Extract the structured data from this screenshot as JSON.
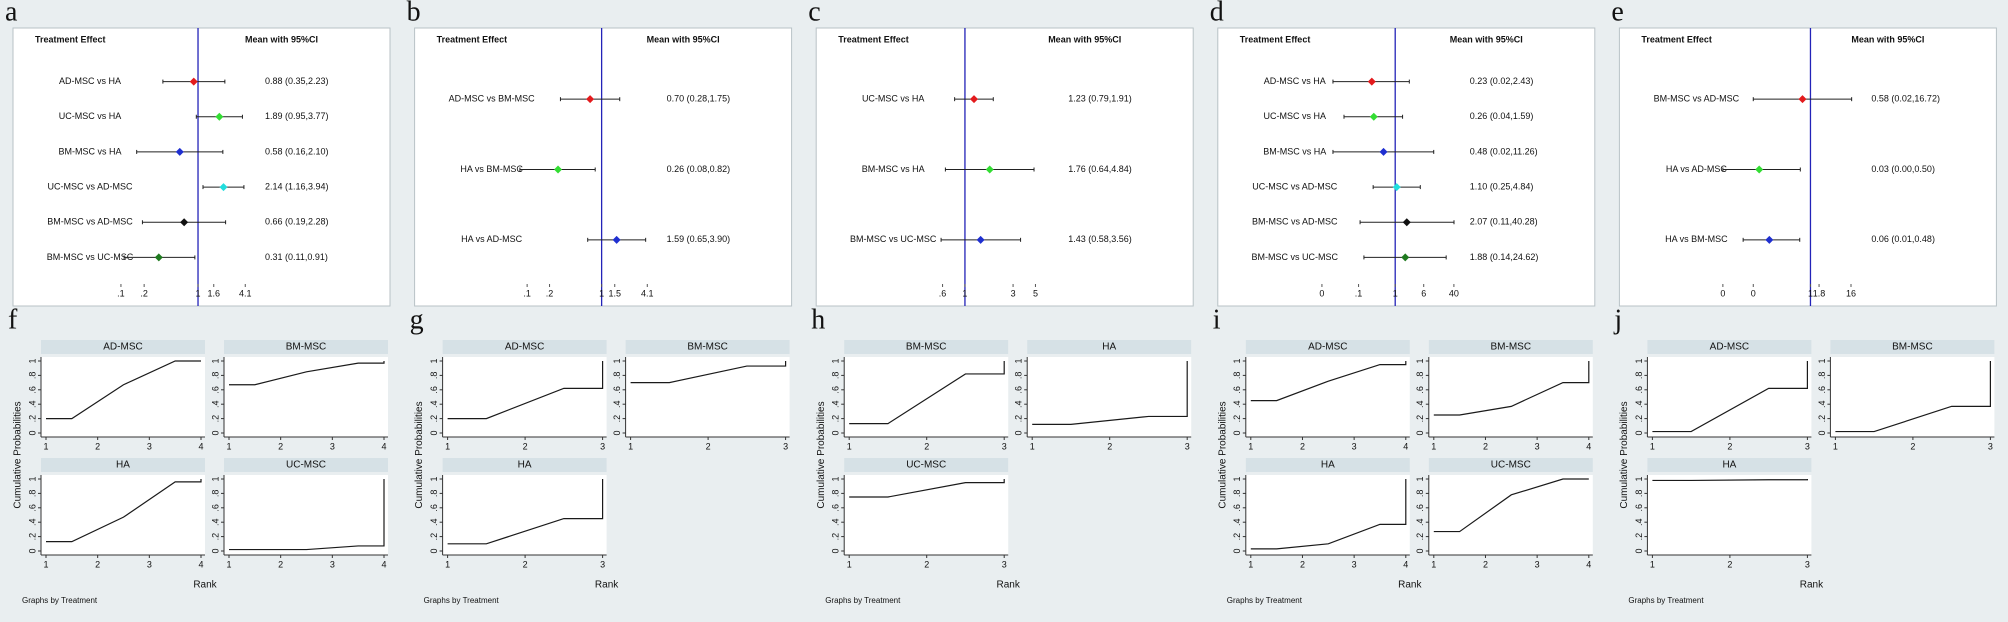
{
  "chart_data": [
    {
      "type": "forest",
      "panel_label": "a",
      "label_header": "Treatment Effect",
      "value_header": "Mean with 95%CI",
      "categories": [
        "AD-MSC vs HA",
        "UC-MSC vs HA",
        "BM-MSC vs HA",
        "UC-MSC vs AD-MSC",
        "BM-MSC vs AD-MSC",
        "BM-MSC vs UC-MSC"
      ],
      "values": [
        0.88,
        1.89,
        0.58,
        2.14,
        0.66,
        0.31
      ],
      "lower": [
        0.35,
        0.95,
        0.16,
        1.16,
        0.19,
        0.11
      ],
      "upper": [
        2.23,
        3.77,
        2.1,
        3.94,
        2.28,
        0.91
      ],
      "value_labels": [
        "0.88 (0.35,2.23)",
        "1.89 (0.95,3.77)",
        "0.58 (0.16,2.10)",
        "2.14 (1.16,3.94)",
        "0.66 (0.19,2.28)",
        "0.31 (0.11,0.91)"
      ],
      "colors": [
        "#e31a1c",
        "#33dd33",
        "#1f2fd0",
        "#22dddd",
        "#111111",
        "#1f7a1f"
      ],
      "ref_line": 1,
      "ref_color": "#2323b8",
      "log_x": true,
      "xlim": [
        0.07,
        6
      ],
      "xticks": [
        {
          "value": 0.1,
          "label": ".1"
        },
        {
          "value": 0.2,
          "label": ".2"
        },
        1,
        1.6,
        4.1
      ]
    },
    {
      "type": "forest",
      "panel_label": "b",
      "label_header": "Treatment Effect",
      "value_header": "Mean with 95%CI",
      "categories": [
        "AD-MSC vs BM-MSC",
        "HA vs BM-MSC",
        "HA vs AD-MSC"
      ],
      "values": [
        0.7,
        0.26,
        1.59
      ],
      "lower": [
        0.28,
        0.08,
        0.65
      ],
      "upper": [
        1.75,
        0.82,
        3.9
      ],
      "value_labels": [
        "0.70 (0.28,1.75)",
        "0.26 (0.08,0.82)",
        "1.59 (0.65,3.90)"
      ],
      "colors": [
        "#e31a1c",
        "#33dd33",
        "#1f2fd0"
      ],
      "ref_line": 1,
      "ref_color": "#2323b8",
      "log_x": true,
      "xlim": [
        0.06,
        6
      ],
      "xticks": [
        {
          "value": 0.1,
          "label": ".1"
        },
        {
          "value": 0.2,
          "label": ".2"
        },
        1,
        1.5,
        4.1
      ]
    },
    {
      "type": "forest",
      "panel_label": "c",
      "label_header": "Treatment Effect",
      "value_header": "Mean with 95%CI",
      "categories": [
        "UC-MSC vs HA",
        "BM-MSC vs HA",
        "BM-MSC vs UC-MSC"
      ],
      "values": [
        1.23,
        1.76,
        1.43
      ],
      "lower": [
        0.79,
        0.64,
        0.58
      ],
      "upper": [
        1.91,
        4.84,
        3.56
      ],
      "value_labels": [
        "1.23 (0.79,1.91)",
        "1.76 (0.64,4.84)",
        "1.43 (0.58,3.56)"
      ],
      "colors": [
        "#e31a1c",
        "#33dd33",
        "#1f2fd0"
      ],
      "ref_line": 1,
      "ref_color": "#2323b8",
      "log_x": true,
      "xlim": [
        0.3,
        9
      ],
      "xticks": [
        {
          "value": 0.6,
          "label": ".6"
        },
        1,
        3,
        5
      ]
    },
    {
      "type": "forest",
      "panel_label": "d",
      "label_header": "Treatment Effect",
      "value_header": "Mean with 95%CI",
      "categories": [
        "AD-MSC vs HA",
        "UC-MSC vs HA",
        "BM-MSC vs HA",
        "UC-MSC vs AD-MSC",
        "BM-MSC vs AD-MSC",
        "BM-MSC vs UC-MSC"
      ],
      "values": [
        0.23,
        0.26,
        0.48,
        1.1,
        2.07,
        1.88
      ],
      "lower": [
        0.02,
        0.04,
        0.02,
        0.25,
        0.11,
        0.14
      ],
      "upper": [
        2.43,
        1.59,
        11.26,
        4.84,
        40.28,
        24.62
      ],
      "value_labels": [
        "0.23 (0.02,2.43)",
        "0.26 (0.04,1.59)",
        "0.48 (0.02,11.26)",
        "1.10 (0.25,4.84)",
        "2.07 (0.11,40.28)",
        "1.88 (0.14,24.62)"
      ],
      "colors": [
        "#e31a1c",
        "#33dd33",
        "#1f2fd0",
        "#22dddd",
        "#111111",
        "#1f7a1f"
      ],
      "ref_line": 1,
      "ref_color": "#2323b8",
      "log_x": true,
      "xlim": [
        0.006,
        70
      ],
      "xticks": [
        {
          "value": 0.01,
          "label": "0"
        },
        {
          "value": 0.1,
          "label": ".1"
        },
        1,
        6,
        40
      ]
    },
    {
      "type": "forest",
      "panel_label": "e",
      "label_header": "Treatment Effect",
      "value_header": "Mean with 95%CI",
      "categories": [
        "BM-MSC vs AD-MSC",
        "HA vs AD-MSC",
        "HA vs BM-MSC"
      ],
      "values": [
        0.58,
        0.03,
        0.06
      ],
      "lower": [
        0.02,
        0.0025,
        0.01
      ],
      "upper": [
        16.72,
        0.5,
        0.48
      ],
      "value_labels": [
        "0.58 (0.02,16.72)",
        "0.03 (0.00,0.50)",
        "0.06 (0.01,0.48)"
      ],
      "colors": [
        "#e31a1c",
        "#33dd33",
        "#1f2fd0"
      ],
      "ref_line": 1,
      "ref_color": "#2323b8",
      "log_x": true,
      "xlim": [
        0.0015,
        40
      ],
      "xticks": [
        {
          "value": 0.0025,
          "label": "0"
        },
        {
          "value": 0.02,
          "label": "0"
        },
        1,
        1.8,
        16
      ]
    },
    {
      "type": "line",
      "panel_label": "f",
      "ylabel": "Cumulative Probabilities",
      "xlabel": "Rank",
      "note": "Graphs by Treatment",
      "color": "#1a1a1a",
      "xlim": [
        1,
        4
      ],
      "xticks": [
        1,
        2,
        3,
        4
      ],
      "ylim": [
        0,
        1
      ],
      "yticks": [
        0,
        {
          "value": 0.2,
          "label": ".2"
        },
        {
          "value": 0.4,
          "label": ".4"
        },
        {
          "value": 0.6,
          "label": ".6"
        },
        {
          "value": 0.8,
          "label": ".8"
        },
        1
      ],
      "series": [
        {
          "name": "AD-MSC",
          "x": [
            1,
            1.5,
            2.5,
            3.5,
            4,
            4
          ],
          "values": [
            0.2,
            0.2,
            0.67,
            1,
            1,
            1
          ]
        },
        {
          "name": "BM-MSC",
          "x": [
            1,
            1.5,
            2.5,
            3.5,
            4,
            4
          ],
          "values": [
            0.67,
            0.67,
            0.85,
            0.97,
            0.97,
            1
          ]
        },
        {
          "name": "HA",
          "x": [
            1,
            1.5,
            2.5,
            3.5,
            4,
            4
          ],
          "values": [
            0.13,
            0.13,
            0.47,
            0.96,
            0.96,
            1
          ]
        },
        {
          "name": "UC-MSC",
          "x": [
            1,
            1.5,
            2.5,
            3.5,
            4,
            4
          ],
          "values": [
            0.02,
            0.02,
            0.02,
            0.07,
            0.07,
            1
          ]
        }
      ]
    },
    {
      "type": "line",
      "panel_label": "g",
      "ylabel": "Cumulative Probabilities",
      "xlabel": "Rank",
      "note": "Graphs by Treatment",
      "color": "#1a1a1a",
      "xlim": [
        1,
        3
      ],
      "xticks": [
        1,
        2,
        3
      ],
      "ylim": [
        0,
        1
      ],
      "yticks": [
        0,
        {
          "value": 0.2,
          "label": ".2"
        },
        {
          "value": 0.4,
          "label": ".4"
        },
        {
          "value": 0.6,
          "label": ".6"
        },
        {
          "value": 0.8,
          "label": ".8"
        },
        1
      ],
      "series": [
        {
          "name": "AD-MSC",
          "x": [
            1,
            1.5,
            2.5,
            3,
            3
          ],
          "values": [
            0.2,
            0.2,
            0.62,
            0.62,
            1
          ]
        },
        {
          "name": "BM-MSC",
          "x": [
            1,
            1.5,
            2.5,
            3,
            3
          ],
          "values": [
            0.7,
            0.7,
            0.93,
            0.93,
            1
          ]
        },
        {
          "name": "HA",
          "x": [
            1,
            1.5,
            2.5,
            3,
            3
          ],
          "values": [
            0.1,
            0.1,
            0.45,
            0.45,
            1
          ]
        }
      ]
    },
    {
      "type": "line",
      "panel_label": "h",
      "ylabel": "Cumulative Probabilities",
      "xlabel": "Rank",
      "note": "Graphs by Treatment",
      "color": "#1a1a1a",
      "xlim": [
        1,
        3
      ],
      "xticks": [
        1,
        2,
        3
      ],
      "ylim": [
        0,
        1
      ],
      "yticks": [
        0,
        {
          "value": 0.2,
          "label": ".2"
        },
        {
          "value": 0.4,
          "label": ".4"
        },
        {
          "value": 0.6,
          "label": ".6"
        },
        {
          "value": 0.8,
          "label": ".8"
        },
        1
      ],
      "series": [
        {
          "name": "BM-MSC",
          "x": [
            1,
            1.5,
            2.5,
            3,
            3
          ],
          "values": [
            0.13,
            0.13,
            0.82,
            0.82,
            1
          ]
        },
        {
          "name": "HA",
          "x": [
            1,
            1.5,
            2.5,
            3,
            3
          ],
          "values": [
            0.12,
            0.12,
            0.23,
            0.23,
            1
          ]
        },
        {
          "name": "UC-MSC",
          "x": [
            1,
            1.5,
            2.5,
            3,
            3
          ],
          "values": [
            0.75,
            0.75,
            0.95,
            0.95,
            1
          ]
        }
      ]
    },
    {
      "type": "line",
      "panel_label": "i",
      "ylabel": "Cumulative Probabilities",
      "xlabel": "Rank",
      "note": "Graphs by Treatment",
      "color": "#1a1a1a",
      "xlim": [
        1,
        4
      ],
      "xticks": [
        1,
        2,
        3,
        4
      ],
      "ylim": [
        0,
        1
      ],
      "yticks": [
        0,
        {
          "value": 0.2,
          "label": ".2"
        },
        {
          "value": 0.4,
          "label": ".4"
        },
        {
          "value": 0.6,
          "label": ".6"
        },
        {
          "value": 0.8,
          "label": ".8"
        },
        1
      ],
      "series": [
        {
          "name": "AD-MSC",
          "x": [
            1,
            1.5,
            2.5,
            3.5,
            4,
            4
          ],
          "values": [
            0.45,
            0.45,
            0.72,
            0.95,
            0.95,
            1
          ]
        },
        {
          "name": "BM-MSC",
          "x": [
            1,
            1.5,
            2.5,
            3.5,
            4,
            4
          ],
          "values": [
            0.25,
            0.25,
            0.37,
            0.7,
            0.7,
            1
          ]
        },
        {
          "name": "HA",
          "x": [
            1,
            1.5,
            2.5,
            3.5,
            4,
            4
          ],
          "values": [
            0.03,
            0.03,
            0.1,
            0.37,
            0.37,
            1
          ]
        },
        {
          "name": "UC-MSC",
          "x": [
            1,
            1.5,
            2.5,
            3.5,
            4,
            4
          ],
          "values": [
            0.27,
            0.27,
            0.78,
            1,
            1,
            1
          ]
        }
      ]
    },
    {
      "type": "line",
      "panel_label": "j",
      "ylabel": "Cumulative Probabilities",
      "xlabel": "Rank",
      "note": "Graphs by Treatment",
      "color": "#1a1a1a",
      "xlim": [
        1,
        3
      ],
      "xticks": [
        1,
        2,
        3
      ],
      "ylim": [
        0,
        1
      ],
      "yticks": [
        0,
        {
          "value": 0.2,
          "label": ".2"
        },
        {
          "value": 0.4,
          "label": ".4"
        },
        {
          "value": 0.6,
          "label": ".6"
        },
        {
          "value": 0.8,
          "label": ".8"
        },
        1
      ],
      "series": [
        {
          "name": "AD-MSC",
          "x": [
            1,
            1.5,
            2.5,
            3,
            3
          ],
          "values": [
            0.02,
            0.02,
            0.62,
            0.62,
            1
          ]
        },
        {
          "name": "BM-MSC",
          "x": [
            1,
            1.5,
            2.5,
            3,
            3
          ],
          "values": [
            0.02,
            0.02,
            0.37,
            0.37,
            1
          ]
        },
        {
          "name": "HA",
          "x": [
            1,
            1.5,
            2.5,
            3,
            3
          ],
          "values": [
            0.98,
            0.98,
            0.99,
            0.99,
            1
          ]
        }
      ]
    }
  ]
}
